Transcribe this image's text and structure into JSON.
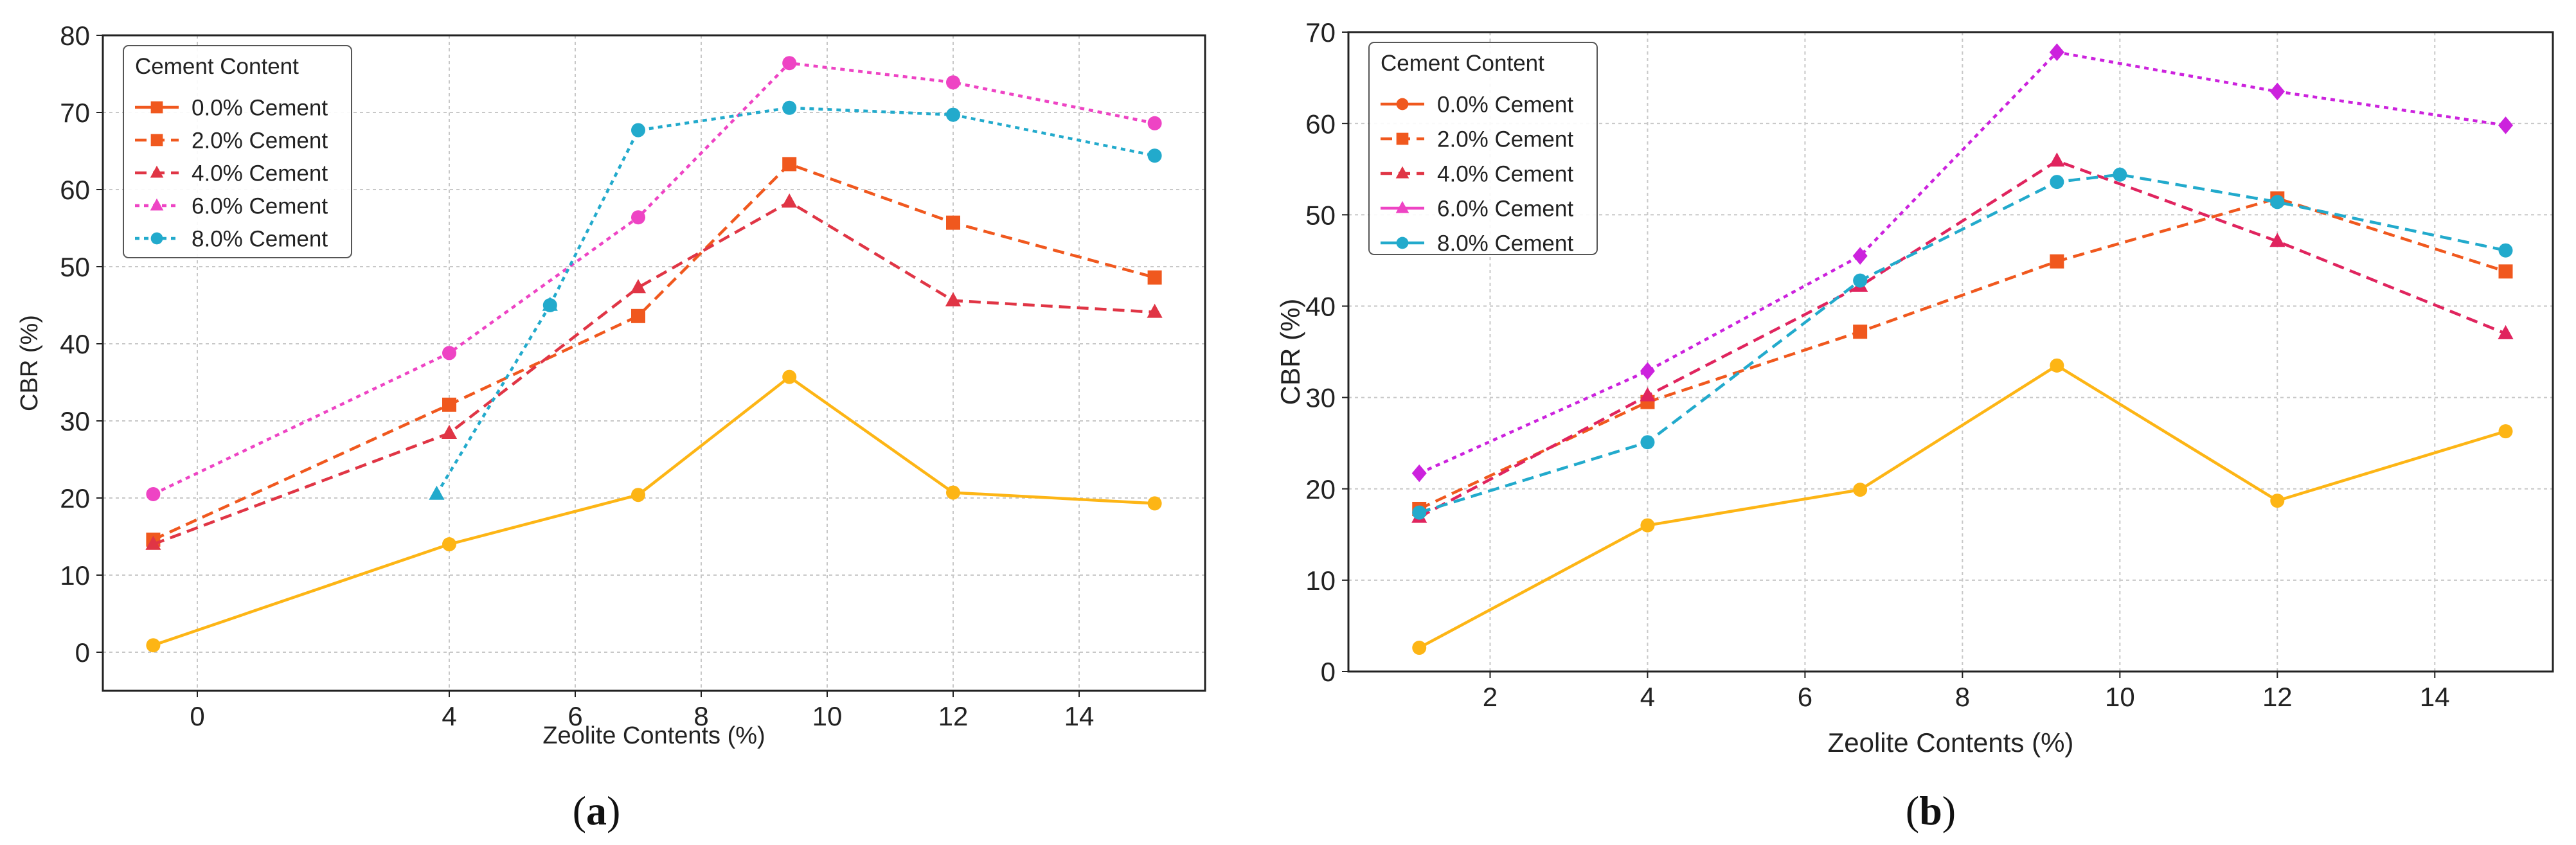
{
  "chart_data": [
    {
      "id": "a",
      "type": "line",
      "caption_open": "(",
      "caption_letter": "a",
      "caption_close": ")",
      "xlabel": "Zeolite Contents (%)",
      "ylabel": "CBR (%)",
      "xlim": [
        -1.5,
        16
      ],
      "ylim": [
        -5,
        80
      ],
      "xticks": [
        0,
        4,
        6,
        8,
        10,
        12,
        14
      ],
      "xtick_labels": [
        "0",
        "4",
        "6",
        "8",
        "10",
        "12",
        "14"
      ],
      "yticks": [
        0,
        10,
        20,
        30,
        40,
        50,
        60,
        70,
        80
      ],
      "ytick_labels": [
        "0",
        "10",
        "20",
        "30",
        "40",
        "50",
        "60",
        "70",
        "80"
      ],
      "grid": true,
      "legend": {
        "title": "Cement Content",
        "position": "top-left",
        "entries": [
          "0.0% Cement",
          "2.0% Cement",
          "4.0% Cement",
          "6.0% Cement",
          "8.0% Cement"
        ],
        "colors": [
          "#f0581e",
          "#f0581e",
          "#e03545",
          "#ee44c4",
          "#22aacc"
        ],
        "markers": [
          "square",
          "square",
          "triangle",
          "triangle",
          "circle"
        ],
        "dashes": [
          "solid",
          "dashed",
          "dashed",
          "dotted",
          "dotted"
        ]
      },
      "series": [
        {
          "name": "0.0% Cement (solid)",
          "color": "#fdb515",
          "dash": "solid",
          "marker": "circle",
          "x": [
            -0.7,
            4,
            7,
            9.4,
            12,
            15.2
          ],
          "y": [
            0.9,
            14,
            20.4,
            35.7,
            20.7,
            19.3
          ]
        },
        {
          "name": "2.0% Cement",
          "color": "#f0581e",
          "dash": "dashed",
          "marker": "square",
          "x": [
            -0.7,
            4,
            7,
            9.4,
            12,
            15.2
          ],
          "y": [
            14.6,
            32.1,
            43.6,
            63.3,
            55.7,
            48.6
          ]
        },
        {
          "name": "4.0% Cement",
          "color": "#e03545",
          "dash": "dashed",
          "marker": "triangle",
          "x": [
            -0.7,
            4,
            7,
            9.4,
            12,
            15.2
          ],
          "y": [
            14,
            28.4,
            47.3,
            58.4,
            45.6,
            44.1
          ]
        },
        {
          "name": "6.0% Cement",
          "color": "#ee44c4",
          "dash": "dotted",
          "marker": "circle",
          "x": [
            -0.7,
            4,
            7,
            9.4,
            12,
            15.2
          ],
          "y": [
            20.5,
            38.8,
            56.4,
            76.4,
            73.9,
            68.6
          ]
        },
        {
          "name": "8.0% Cement",
          "color": "#22aacc",
          "dash": "dotted",
          "marker": "circle",
          "x": [
            5.6,
            7,
            9.4,
            12,
            15.2
          ],
          "y": [
            45,
            67.7,
            70.6,
            69.7,
            64.4
          ]
        },
        {
          "name": "8.0% Cement (start)",
          "color": "#22aacc",
          "dash": "dotted",
          "marker": "triangle",
          "x": [
            3.8,
            5.6
          ],
          "y": [
            20.5,
            45
          ]
        }
      ]
    },
    {
      "id": "b",
      "type": "line",
      "caption_open": "(",
      "caption_letter": "b",
      "caption_close": ")",
      "xlabel": "Zeolite Contents (%)",
      "ylabel": "CBR (%)",
      "xlim": [
        0.2,
        15.5
      ],
      "ylim": [
        0,
        70
      ],
      "xticks": [
        2,
        4,
        6,
        8,
        10,
        12,
        14
      ],
      "xtick_labels": [
        "2",
        "4",
        "6",
        "8",
        "10",
        "12",
        "14"
      ],
      "yticks": [
        0,
        10,
        20,
        30,
        40,
        50,
        60,
        70
      ],
      "ytick_labels": [
        "0",
        "10",
        "20",
        "30",
        "40",
        "50",
        "60",
        "70"
      ],
      "grid": true,
      "legend": {
        "title": "Cement Content",
        "position": "top-left",
        "entries": [
          "0.0% Cement",
          "2.0% Cement",
          "4.0% Cement",
          "6.0% Cement",
          "8.0% Cement"
        ],
        "colors": [
          "#f0581e",
          "#f0581e",
          "#e03545",
          "#ee44c4",
          "#22aacc"
        ],
        "markers": [
          "circle",
          "square",
          "triangle",
          "triangle",
          "circle"
        ],
        "dashes": [
          "solid",
          "dashed",
          "dashed",
          "solid",
          "solid"
        ]
      },
      "series": [
        {
          "name": "0.0% Cement (solid)",
          "color": "#fdb515",
          "dash": "solid",
          "marker": "circle",
          "x": [
            1.1,
            4,
            6.7,
            9.2,
            12,
            14.9
          ],
          "y": [
            2.6,
            16,
            19.9,
            33.5,
            18.7,
            26.3
          ]
        },
        {
          "name": "2.0% Cement",
          "color": "#f0581e",
          "dash": "dashed",
          "marker": "square",
          "x": [
            1.1,
            4,
            6.7,
            9.2,
            12,
            14.9
          ],
          "y": [
            17.8,
            29.5,
            37.2,
            44.9,
            51.8,
            43.8
          ]
        },
        {
          "name": "4.0% Cement",
          "color": "#e0245e",
          "dash": "dashed",
          "marker": "triangle",
          "x": [
            1.1,
            4,
            6.7,
            9.2,
            12,
            14.9
          ],
          "y": [
            16.9,
            30.2,
            42.2,
            55.9,
            47.1,
            37
          ]
        },
        {
          "name": "6.0% Cement",
          "color": "#cc22dd",
          "dash": "dotted",
          "marker": "diamond",
          "x": [
            1.1,
            4,
            6.7,
            9.2,
            12,
            14.9
          ],
          "y": [
            21.7,
            32.9,
            45.5,
            67.8,
            63.5,
            59.8
          ]
        },
        {
          "name": "8.0% Cement",
          "color": "#22aacc",
          "dash": "dashed",
          "marker": "circle",
          "x": [
            1.1,
            4,
            6.7,
            9.2,
            10,
            12,
            14.9
          ],
          "y": [
            17.4,
            25.1,
            42.8,
            53.6,
            54.4,
            51.4,
            46.1
          ]
        }
      ]
    }
  ]
}
